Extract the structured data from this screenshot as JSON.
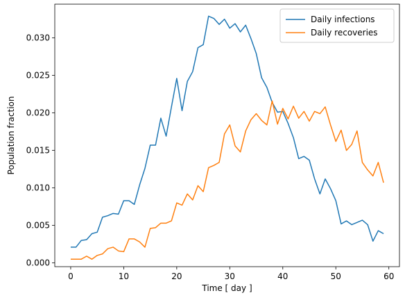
{
  "chart_data": {
    "type": "line",
    "title": "",
    "xlabel": "Time [ day ]",
    "ylabel": "Population fraction",
    "xlim": [
      -3,
      62
    ],
    "ylim": [
      -0.0005,
      0.0345
    ],
    "xticks": [
      0,
      10,
      20,
      30,
      40,
      50,
      60
    ],
    "xtick_labels": [
      "0",
      "10",
      "20",
      "30",
      "40",
      "50",
      "60"
    ],
    "yticks": [
      0.0,
      0.005,
      0.01,
      0.015,
      0.02,
      0.025,
      0.03
    ],
    "ytick_labels": [
      "0.000",
      "0.005",
      "0.010",
      "0.015",
      "0.020",
      "0.025",
      "0.030"
    ],
    "grid": false,
    "legend_position": "top-right",
    "x": [
      0,
      1,
      2,
      3,
      4,
      5,
      6,
      7,
      8,
      9,
      10,
      11,
      12,
      13,
      14,
      15,
      16,
      17,
      18,
      19,
      20,
      21,
      22,
      23,
      24,
      25,
      26,
      27,
      28,
      29,
      30,
      31,
      32,
      33,
      34,
      35,
      36,
      37,
      38,
      39,
      40,
      41,
      42,
      43,
      44,
      45,
      46,
      47,
      48,
      49,
      50,
      51,
      52,
      53,
      54,
      55,
      56,
      57,
      58,
      59
    ],
    "series": [
      {
        "name": "Daily infections",
        "color": "#1f77b4",
        "values": [
          0.0021,
          0.0021,
          0.003,
          0.0031,
          0.0039,
          0.0041,
          0.0061,
          0.0063,
          0.0066,
          0.0065,
          0.0083,
          0.0083,
          0.0078,
          0.0104,
          0.0126,
          0.0157,
          0.0157,
          0.0193,
          0.0169,
          0.0208,
          0.0246,
          0.0203,
          0.0242,
          0.0255,
          0.0287,
          0.0291,
          0.0329,
          0.0326,
          0.0318,
          0.0325,
          0.0313,
          0.0319,
          0.0308,
          0.0317,
          0.0299,
          0.0279,
          0.0247,
          0.0234,
          0.0214,
          0.0201,
          0.0202,
          0.0186,
          0.0167,
          0.0139,
          0.0142,
          0.0137,
          0.0112,
          0.0092,
          0.0112,
          0.0099,
          0.0083,
          0.0052,
          0.0056,
          0.0051,
          0.0054,
          0.0057,
          0.0051,
          0.0029,
          0.0043,
          0.0039
        ]
      },
      {
        "name": "Daily recoveries",
        "color": "#ff7f0e",
        "values": [
          0.0005,
          0.0005,
          0.0005,
          0.0009,
          0.0005,
          0.001,
          0.0012,
          0.0019,
          0.0021,
          0.0016,
          0.0015,
          0.0032,
          0.0032,
          0.0028,
          0.0021,
          0.0046,
          0.0047,
          0.0053,
          0.0053,
          0.0056,
          0.008,
          0.0077,
          0.0092,
          0.0084,
          0.0103,
          0.0095,
          0.0127,
          0.013,
          0.0134,
          0.0172,
          0.0184,
          0.0156,
          0.0148,
          0.0176,
          0.0191,
          0.0199,
          0.019,
          0.0184,
          0.0216,
          0.0185,
          0.0206,
          0.0192,
          0.0209,
          0.0193,
          0.0202,
          0.0189,
          0.0202,
          0.0199,
          0.0208,
          0.0184,
          0.0162,
          0.0177,
          0.015,
          0.0158,
          0.0176,
          0.0134,
          0.0124,
          0.0116,
          0.0134,
          0.0107
        ]
      }
    ]
  }
}
